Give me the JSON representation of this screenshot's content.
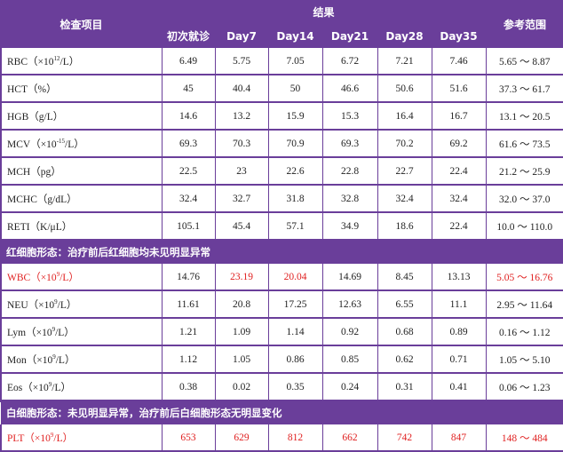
{
  "header": {
    "item": "检查项目",
    "results": "结果",
    "reference": "参考范围",
    "columns": [
      "初次就诊",
      "Day7",
      "Day14",
      "Day21",
      "Day28",
      "Day35"
    ]
  },
  "rows_rbc": [
    {
      "pre": "RBC（×10",
      "sup": "12",
      "post": "/L）",
      "values": [
        "6.49",
        "5.75",
        "7.05",
        "6.72",
        "7.21",
        "7.46"
      ],
      "ref": "5.65 ～ 8.87"
    },
    {
      "pre": "HCT（%）",
      "sup": "",
      "post": "",
      "values": [
        "45",
        "40.4",
        "50",
        "46.6",
        "50.6",
        "51.6"
      ],
      "ref": "37.3 ～ 61.7"
    },
    {
      "pre": "HGB（g/L）",
      "sup": "",
      "post": "",
      "values": [
        "14.6",
        "13.2",
        "15.9",
        "15.3",
        "16.4",
        "16.7"
      ],
      "ref": "13.1 ～ 20.5"
    },
    {
      "pre": "MCV（×10",
      "sup": "-15",
      "post": "/L）",
      "values": [
        "69.3",
        "70.3",
        "70.9",
        "69.3",
        "70.2",
        "69.2"
      ],
      "ref": "61.6 ～ 73.5"
    },
    {
      "pre": "MCH（pg）",
      "sup": "",
      "post": "",
      "values": [
        "22.5",
        "23",
        "22.6",
        "22.8",
        "22.7",
        "22.4"
      ],
      "ref": "21.2 ～ 25.9"
    },
    {
      "pre": "MCHC（g/dL）",
      "sup": "",
      "post": "",
      "values": [
        "32.4",
        "32.7",
        "31.8",
        "32.8",
        "32.4",
        "32.4"
      ],
      "ref": "32.0 ～ 37.0"
    },
    {
      "pre": "RETI（K/μL）",
      "sup": "",
      "post": "",
      "values": [
        "105.1",
        "45.4",
        "57.1",
        "34.9",
        "18.6",
        "22.4"
      ],
      "ref": "10.0 ～ 110.0"
    }
  ],
  "banner_rbc": "红细胞形态：治疗前后红细胞均未见明显异常",
  "rows_wbc": [
    {
      "pre": "WBC（×10",
      "sup": "9",
      "post": "/L）",
      "values": [
        "14.76",
        "23.19",
        "20.04",
        "14.69",
        "8.45",
        "13.13"
      ],
      "ref": "5.05 ～ 16.76"
    },
    {
      "pre": "NEU（×10",
      "sup": "9",
      "post": "/L）",
      "values": [
        "11.61",
        "20.8",
        "17.25",
        "12.63",
        "6.55",
        "11.1"
      ],
      "ref": "2.95 ～ 11.64"
    },
    {
      "pre": "Lym（×10",
      "sup": "9",
      "post": "/L）",
      "values": [
        "1.21",
        "1.09",
        "1.14",
        "0.92",
        "0.68",
        "0.89"
      ],
      "ref": "0.16 ～ 1.12"
    },
    {
      "pre": "Mon（×10",
      "sup": "9",
      "post": "/L）",
      "values": [
        "1.12",
        "1.05",
        "0.86",
        "0.85",
        "0.62",
        "0.71"
      ],
      "ref": "1.05 ～ 5.10"
    },
    {
      "pre": "Eos（×10",
      "sup": "9",
      "post": "/L）",
      "values": [
        "0.38",
        "0.02",
        "0.35",
        "0.24",
        "0.31",
        "0.41"
      ],
      "ref": "0.06 ～ 1.23"
    }
  ],
  "banner_wbc": "白细胞形态：未见明显异常，治疗前后白细胞形态无明显变化",
  "row_plt": {
    "pre": "PLT（×10",
    "sup": "9",
    "post": "/L）",
    "values": [
      "653",
      "629",
      "812",
      "662",
      "742",
      "847"
    ],
    "ref": "148 ～ 484"
  },
  "colors": {
    "header_bg": "#6a3e9a",
    "highlight": "#e02020"
  }
}
